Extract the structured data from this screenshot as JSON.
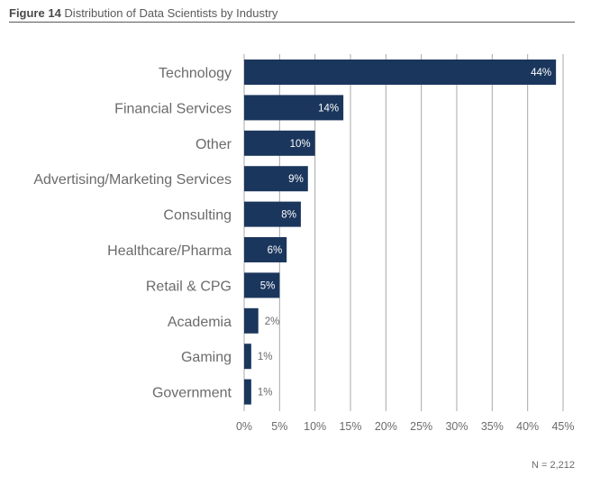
{
  "figure": {
    "number": "Figure 14",
    "caption": "Distribution of Data Scientists by Industry"
  },
  "note": "N = 2,212",
  "colors": {
    "bar": "#1b365d",
    "grid": "#a8a8a8",
    "text": "#6b6b6b"
  },
  "chart_data": {
    "type": "bar",
    "orientation": "horizontal",
    "title": "Distribution of Data Scientists by Industry",
    "xlabel": "",
    "ylabel": "",
    "categories": [
      "Technology",
      "Financial Services",
      "Other",
      "Advertising/Marketing Services",
      "Consulting",
      "Healthcare/Pharma",
      "Retail & CPG",
      "Academia",
      "Gaming",
      "Government"
    ],
    "values": [
      44,
      14,
      10,
      9,
      8,
      6,
      5,
      2,
      1,
      1
    ],
    "value_labels": [
      "44%",
      "14%",
      "10%",
      "9%",
      "8%",
      "6%",
      "5%",
      "2%",
      "1%",
      "1%"
    ],
    "xlim": [
      0,
      45
    ],
    "xticks": [
      0,
      5,
      10,
      15,
      20,
      25,
      30,
      35,
      40,
      45
    ],
    "xtick_labels": [
      "0%",
      "5%",
      "10%",
      "15%",
      "20%",
      "25%",
      "30%",
      "35%",
      "40%",
      "45%"
    ],
    "grid": true,
    "legend": "none"
  }
}
